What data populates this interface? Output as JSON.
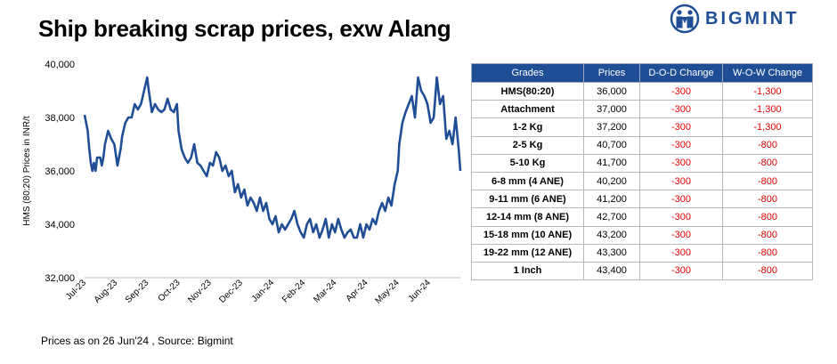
{
  "title": "Ship breaking scrap prices, exw Alang",
  "logo": {
    "text": "BIGMINT",
    "icon": "bigmint-logo-icon",
    "color": "#1f4e96"
  },
  "footer": "Prices as on 26 Jun'24 , Source:  Bigmint",
  "table": {
    "headers": [
      "Grades",
      "Prices",
      "D-O-D Change",
      "W-O-W Change"
    ],
    "header_color": "#1f4e96",
    "change_color": "#e00000",
    "rows": [
      [
        "HMS(80:20)",
        "36,000",
        "-300",
        "-1,300"
      ],
      [
        "Attachment",
        "37,000",
        "-300",
        "-1,300"
      ],
      [
        "1-2 Kg",
        "37,200",
        "-300",
        "-1,300"
      ],
      [
        "2-5 Kg",
        "40,700",
        "-300",
        "-800"
      ],
      [
        "5-10 Kg",
        "41,700",
        "-300",
        "-800"
      ],
      [
        "6-8 mm (4 ANE)",
        "40,200",
        "-300",
        "-800"
      ],
      [
        "9-11 mm (6 ANE)",
        "41,200",
        "-300",
        "-800"
      ],
      [
        "12-14 mm (8 ANE)",
        "42,700",
        "-300",
        "-800"
      ],
      [
        "15-18 mm (10 ANE)",
        "43,200",
        "-300",
        "-800"
      ],
      [
        "19-22 mm (12 ANE)",
        "43,300",
        "-300",
        "-800"
      ],
      [
        "1 Inch",
        "43,400",
        "-300",
        "-800"
      ]
    ]
  },
  "chart_data": {
    "type": "line",
    "title": "",
    "xlabel": "",
    "ylabel": "HMS (80:20) Prices in INR/t",
    "ylim": [
      32000,
      40000
    ],
    "yticks": [
      "32,000",
      "34,000",
      "36,000",
      "38,000",
      "40,000"
    ],
    "xticks": [
      "Jul-23",
      "Aug-23",
      "Sep-23",
      "Oct-23",
      "Nov-23",
      "Dec-23",
      "Jan-24",
      "Feb-24",
      "Mar-24",
      "Apr-24",
      "May-24",
      "Jun-24"
    ],
    "grid": false,
    "line_color": "#1f4e96",
    "series": [
      {
        "name": "",
        "x": [
          0.0,
          0.1,
          0.15,
          0.2,
          0.25,
          0.3,
          0.35,
          0.4,
          0.45,
          0.5,
          0.55,
          0.6,
          0.65,
          0.75,
          0.85,
          0.95,
          1.05,
          1.15,
          1.2,
          1.3,
          1.4,
          1.5,
          1.6,
          1.7,
          1.8,
          1.9,
          2.0,
          2.05,
          2.15,
          2.25,
          2.35,
          2.45,
          2.55,
          2.65,
          2.75,
          2.85,
          2.95,
          3.0,
          3.1,
          3.2,
          3.3,
          3.4,
          3.5,
          3.6,
          3.7,
          3.8,
          3.9,
          4.0,
          4.1,
          4.2,
          4.3,
          4.4,
          4.5,
          4.6,
          4.7,
          4.8,
          4.9,
          5.0,
          5.1,
          5.2,
          5.3,
          5.4,
          5.5,
          5.6,
          5.7,
          5.8,
          5.9,
          6.0,
          6.1,
          6.2,
          6.3,
          6.4,
          6.5,
          6.6,
          6.7,
          6.8,
          6.9,
          7.0,
          7.1,
          7.2,
          7.3,
          7.4,
          7.5,
          7.6,
          7.7,
          7.8,
          7.9,
          8.0,
          8.1,
          8.2,
          8.3,
          8.4,
          8.5,
          8.6,
          8.7,
          8.8,
          8.9,
          9.0,
          9.1,
          9.2,
          9.3,
          9.4,
          9.5,
          9.6,
          9.7,
          9.8,
          9.9,
          10.0,
          10.05,
          10.15,
          10.25,
          10.35,
          10.45,
          10.55,
          10.65,
          10.75,
          10.85,
          10.95,
          11.05,
          11.15,
          11.25,
          11.35,
          11.45,
          11.55,
          11.65,
          11.75,
          11.85,
          11.95,
          12.0
        ],
        "values": [
          38100,
          37500,
          36800,
          36300,
          36000,
          36300,
          36000,
          36500,
          36500,
          36500,
          36200,
          36500,
          37000,
          37500,
          37200,
          37000,
          36200,
          36800,
          37300,
          37800,
          38000,
          38000,
          38500,
          38300,
          38500,
          39000,
          39500,
          39000,
          38200,
          38500,
          38300,
          38200,
          38300,
          38700,
          38300,
          38200,
          38500,
          37500,
          36800,
          36500,
          36300,
          36500,
          37000,
          36300,
          36200,
          36000,
          35800,
          36300,
          36200,
          36700,
          36500,
          36000,
          36200,
          35800,
          36000,
          35200,
          35500,
          35000,
          35300,
          34700,
          35000,
          34800,
          34500,
          35000,
          34500,
          34800,
          34200,
          34000,
          34300,
          33700,
          34000,
          33800,
          34000,
          34200,
          34500,
          34000,
          33700,
          33500,
          34000,
          34200,
          33700,
          34000,
          33500,
          33800,
          34200,
          33500,
          34000,
          33700,
          34200,
          33800,
          33500,
          33700,
          33800,
          33500,
          33500,
          34000,
          33500,
          34000,
          33800,
          34200,
          34000,
          34500,
          34800,
          34500,
          35000,
          34700,
          35500,
          36000,
          37000,
          37800,
          38200,
          38500,
          38800,
          38000,
          39500,
          39000,
          38800,
          38500,
          37800,
          38000,
          39500,
          38500,
          38800,
          37200,
          37500,
          37000,
          38000,
          36800,
          36000
        ]
      }
    ]
  }
}
